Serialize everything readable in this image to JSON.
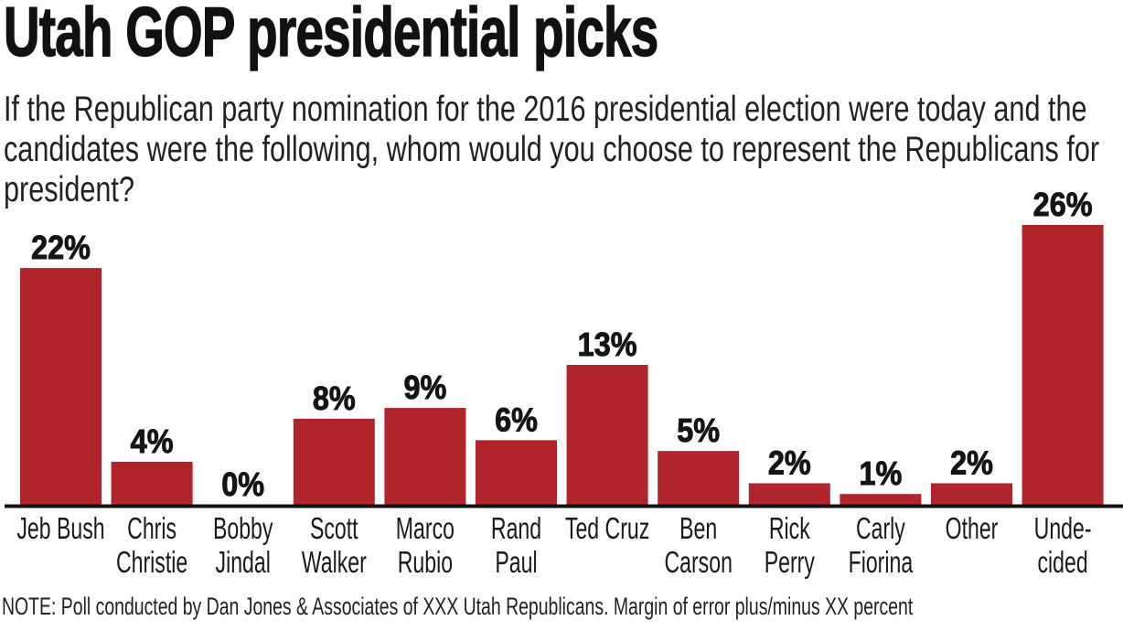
{
  "chart_data": {
    "type": "bar",
    "title": "Utah GOP presidential picks",
    "subtitle": "If the Republican party nomination for the 2016 presidential election were today and the candidates were the following, whom would you choose to represent the Republicans for president?",
    "categories": [
      [
        "Jeb Bush"
      ],
      [
        "Chris",
        "Christie"
      ],
      [
        "Bobby",
        "Jindal"
      ],
      [
        "Scott",
        "Walker"
      ],
      [
        "Marco",
        "Rubio"
      ],
      [
        "Rand",
        "Paul"
      ],
      [
        "Ted Cruz"
      ],
      [
        "Ben",
        "Carson"
      ],
      [
        "Rick",
        "Perry"
      ],
      [
        "Carly",
        "Fiorina"
      ],
      [
        "Other"
      ],
      [
        "Unde-",
        "cided"
      ]
    ],
    "values": [
      22,
      4,
      0,
      8,
      9,
      6,
      13,
      5,
      2,
      1,
      2,
      26
    ],
    "value_labels": [
      "22%",
      "4%",
      "0%",
      "8%",
      "9%",
      "6%",
      "13%",
      "5%",
      "2%",
      "1%",
      "2%",
      "26%"
    ],
    "unit": "%",
    "ylim": [
      0,
      26
    ],
    "grid": false,
    "bar_color": "#b0242c",
    "xlabel": "",
    "ylabel": "",
    "note": "NOTE: Poll conducted by Dan Jones & Associates of XXX Utah Republicans. Margin of error plus/minus XX percent"
  }
}
